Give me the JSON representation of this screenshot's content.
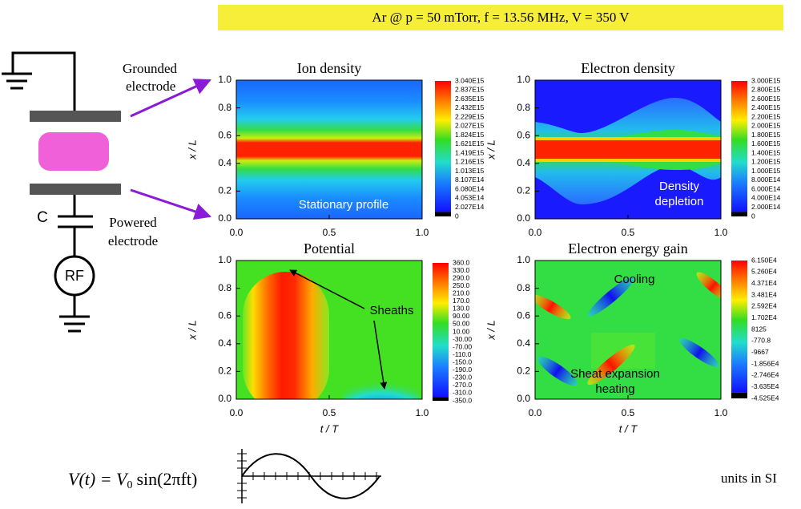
{
  "header": {
    "title": "Ar @ p = 50 mTorr, f = 13.56 MHz, V = 350 V"
  },
  "diagram": {
    "grounded_label": [
      "Grounded",
      "electrode"
    ],
    "powered_label": [
      "Powered",
      "electrode"
    ],
    "capacitor": "C",
    "source": "RF"
  },
  "panels": [
    {
      "title": "Ion density",
      "y_label": "x / L",
      "xticks": [
        "0.0",
        "0.5",
        "1.0"
      ],
      "yticks": [
        "0.0",
        "0.2",
        "0.4",
        "0.6",
        "0.8",
        "1.0"
      ],
      "colorbar": [
        "3.040E15",
        "2.837E15",
        "2.635E15",
        "2.432E15",
        "2.229E15",
        "2.027E15",
        "1.824E15",
        "1.621E15",
        "1.419E15",
        "1.216E15",
        "1.013E15",
        "8.107E14",
        "6.080E14",
        "4.053E14",
        "2.027E14",
        "0"
      ],
      "annotations": [
        {
          "lines": [
            "Stationary profile"
          ]
        }
      ]
    },
    {
      "title": "Electron density",
      "y_label": "x / L",
      "xticks": [
        "0.0",
        "0.5",
        "1.0"
      ],
      "yticks": [
        "0.0",
        "0.2",
        "0.4",
        "0.6",
        "0.8",
        "1.0"
      ],
      "colorbar": [
        "3.000E15",
        "2.800E15",
        "2.600E15",
        "2.400E15",
        "2.200E15",
        "2.000E15",
        "1.800E15",
        "1.600E15",
        "1.400E15",
        "1.200E15",
        "1.000E15",
        "8.000E14",
        "6.000E14",
        "4.000E14",
        "2.000E14",
        "0"
      ],
      "annotations": [
        {
          "lines": [
            "Density",
            "depletion"
          ]
        }
      ]
    },
    {
      "title": "Potential",
      "y_label": "x / L",
      "x_label": "t / T",
      "xticks": [
        "0.0",
        "0.5",
        "1.0"
      ],
      "yticks": [
        "0.0",
        "0.2",
        "0.4",
        "0.6",
        "0.8",
        "1.0"
      ],
      "colorbar": [
        "360.0",
        "330.0",
        "290.0",
        "250.0",
        "210.0",
        "170.0",
        "130.0",
        "90.00",
        "50.00",
        "10.00",
        "-30.00",
        "-70.00",
        "-110.0",
        "-150.0",
        "-190.0",
        "-230.0",
        "-270.0",
        "-310.0",
        "-350.0"
      ],
      "annotations": [
        {
          "lines": [
            "Sheaths"
          ]
        }
      ]
    },
    {
      "title": "Electron energy gain",
      "y_label": "x / L",
      "x_label": "t / T",
      "xticks": [
        "0.0",
        "0.5",
        "1.0"
      ],
      "yticks": [
        "0.0",
        "0.2",
        "0.4",
        "0.6",
        "0.8",
        "1.0"
      ],
      "colorbar": [
        "6.150E4",
        "5.260E4",
        "4.371E4",
        "3.481E4",
        "2.592E4",
        "1.702E4",
        "8125",
        "-770.8",
        "-9667",
        "-1.856E4",
        "-2.746E4",
        "-3.635E4",
        "-4.525E4"
      ],
      "annotations": [
        {
          "lines": [
            "Cooling"
          ]
        },
        {
          "lines": [
            "Sheat expansion",
            "heating"
          ]
        }
      ]
    }
  ],
  "equation": {
    "lhs": "V(t) = V",
    "sub": "0",
    "rhs": "sin(2πft)"
  },
  "units_note": "units in SI"
}
